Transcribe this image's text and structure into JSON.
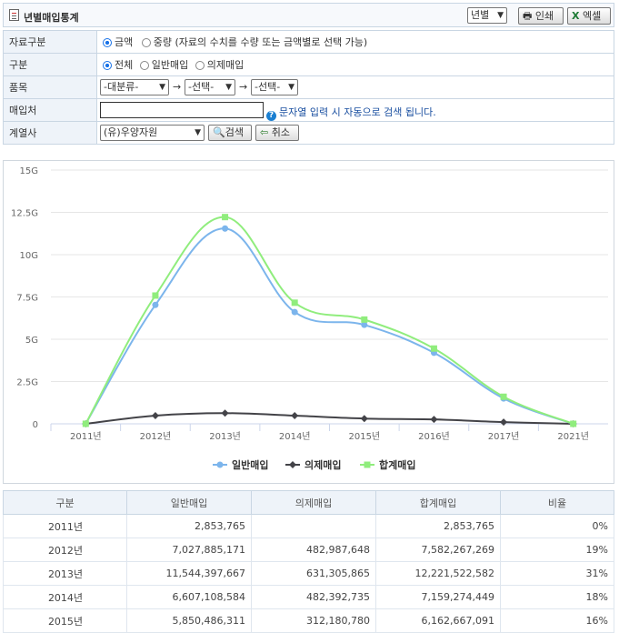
{
  "header": {
    "title": "년별매입통계",
    "period_select": "년별",
    "print_label": "인쇄",
    "excel_label": "엑셀"
  },
  "form": {
    "rows": [
      {
        "label": "자료구분"
      },
      {
        "label": "구분"
      },
      {
        "label": "품목"
      },
      {
        "label": "매입처"
      },
      {
        "label": "계열사"
      }
    ],
    "data_type": {
      "opt_amount": "금액",
      "opt_qty": "중량 (자료의 수치를 수량 또는 금액별로 선택 가능)"
    },
    "category": {
      "opt_all": "전체",
      "opt_general": "일반매입",
      "opt_consign": "의제매입"
    },
    "item": {
      "major": "-대분류-",
      "mid": "-선택-",
      "minor": "-선택-",
      "arrow": "→"
    },
    "supplier": {
      "value": "",
      "hint": "문자열 입력 시 자동으로 검색 됩니다."
    },
    "affiliate": {
      "value": "(유)우양자원",
      "search_label": "검색",
      "cancel_label": "취소"
    }
  },
  "chart_data": {
    "type": "line",
    "categories": [
      "2011년",
      "2012년",
      "2013년",
      "2014년",
      "2015년",
      "2016년",
      "2017년",
      "2021년"
    ],
    "y_ticks": [
      "0",
      "2.5G",
      "5G",
      "7.5G",
      "10G",
      "12.5G",
      "15G"
    ],
    "ylim": [
      0,
      15000000000
    ],
    "grid": true,
    "legend_position": "bottom",
    "series": [
      {
        "name": "일반매입",
        "color": "#7cb5ec",
        "marker": "circle",
        "values": [
          2853765,
          7027885171,
          11544397667,
          6607108584,
          5850486311,
          4200000000,
          1500000000,
          0
        ]
      },
      {
        "name": "의제매입",
        "color": "#434348",
        "marker": "diamond",
        "values": [
          0,
          482987648,
          631305865,
          482392735,
          312180780,
          260000000,
          100000000,
          0
        ]
      },
      {
        "name": "합계매입",
        "color": "#90ed7d",
        "marker": "square",
        "values": [
          2853765,
          7582267269,
          12221522582,
          7159274449,
          6162667091,
          4450000000,
          1600000000,
          0
        ]
      }
    ]
  },
  "table": {
    "headers": [
      "구분",
      "일반매입",
      "의제매입",
      "합계매입",
      "비율"
    ],
    "rows": [
      [
        "2011년",
        "2,853,765",
        "",
        "2,853,765",
        "0%"
      ],
      [
        "2012년",
        "7,027,885,171",
        "482,987,648",
        "7,582,267,269",
        "19%"
      ],
      [
        "2013년",
        "11,544,397,667",
        "631,305,865",
        "12,221,522,582",
        "31%"
      ],
      [
        "2014년",
        "6,607,108,584",
        "482,392,735",
        "7,159,274,449",
        "18%"
      ],
      [
        "2015년",
        "5,850,486,311",
        "312,180,780",
        "6,162,667,091",
        "16%"
      ]
    ]
  }
}
